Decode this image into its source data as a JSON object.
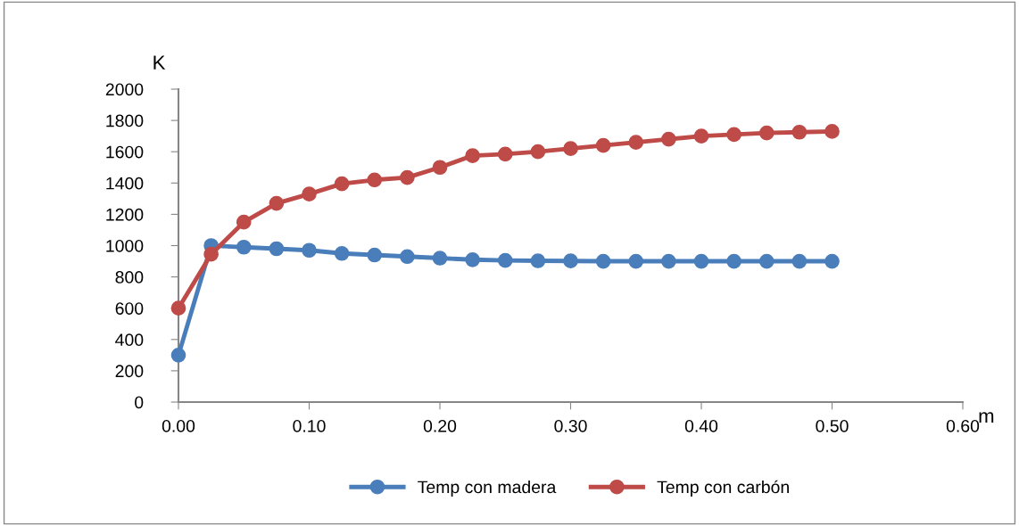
{
  "chart_data": {
    "type": "line",
    "xlabel": "m",
    "ylabel": "K",
    "x": [
      0.0,
      0.025,
      0.05,
      0.075,
      0.1,
      0.125,
      0.15,
      0.175,
      0.2,
      0.225,
      0.25,
      0.275,
      0.3,
      0.325,
      0.35,
      0.375,
      0.4,
      0.425,
      0.45,
      0.475,
      0.5
    ],
    "series": [
      {
        "name": "Temp con madera",
        "color": "#4a7ebb",
        "values": [
          300,
          1000,
          990,
          980,
          970,
          950,
          940,
          930,
          920,
          910,
          905,
          903,
          902,
          900,
          900,
          900,
          900,
          900,
          900,
          900,
          900
        ]
      },
      {
        "name": "Temp con carbón",
        "color": "#be4b48",
        "values": [
          600,
          945,
          1150,
          1270,
          1330,
          1395,
          1420,
          1435,
          1500,
          1575,
          1585,
          1600,
          1620,
          1640,
          1660,
          1680,
          1700,
          1710,
          1720,
          1725,
          1730
        ]
      }
    ],
    "xlim": [
      0,
      0.6
    ],
    "xticks": [
      {
        "value": 0,
        "label": "0.00"
      },
      {
        "value": 0.1,
        "label": "0.10"
      },
      {
        "value": 0.2,
        "label": "0.20"
      },
      {
        "value": 0.3,
        "label": "0.30"
      },
      {
        "value": 0.4,
        "label": "0.40"
      },
      {
        "value": 0.5,
        "label": "0.50"
      },
      {
        "value": 0.6,
        "label": "0.60"
      }
    ],
    "ylim": [
      0,
      2000
    ],
    "yticks": [
      0,
      200,
      400,
      600,
      800,
      1000,
      1200,
      1400,
      1600,
      1800,
      2000
    ],
    "grid": false,
    "legend": "bottom",
    "marker": "circle",
    "line_style": "solid"
  }
}
